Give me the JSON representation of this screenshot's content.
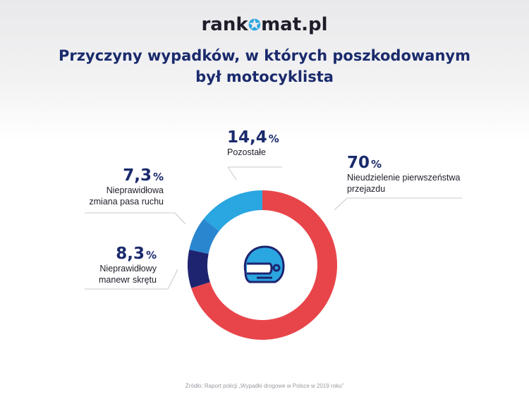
{
  "header": {
    "logo_left": "rank",
    "logo_right": "mat.pl",
    "title_line1": "Przyczyny wypadków, w których poszkodowanym",
    "title_line2": "był motocyklista"
  },
  "chart_data": {
    "type": "pie",
    "variant": "donut",
    "center_icon": "motorcycle-helmet-icon",
    "slices": [
      {
        "label_line1": "Nieudzielenie pierwszeństwa",
        "label_line2": "przejazdu",
        "value": 70,
        "value_text": "70",
        "unit": "%",
        "color": "#e8454b"
      },
      {
        "label_line1": "Nieprawidłowy",
        "label_line2": "manewr skrętu",
        "value": 8.3,
        "value_text": "8,3",
        "unit": "%",
        "color": "#1e2470"
      },
      {
        "label_line1": "Nieprawidłowa",
        "label_line2": "zmiana pasa ruchu",
        "value": 7.3,
        "value_text": "7,3",
        "unit": "%",
        "color": "#2a86cf"
      },
      {
        "label_line1": "Pozostałe",
        "label_line2": "",
        "value": 14.4,
        "value_text": "14,4",
        "unit": "%",
        "color": "#2aa6e0"
      }
    ]
  },
  "footer": {
    "source": "Źródło: Raport policji „Wypadki drogowe w Polsce w 2019 roku”"
  },
  "colors": {
    "title": "#1a2a6c",
    "accent": "#2aa6e0"
  }
}
